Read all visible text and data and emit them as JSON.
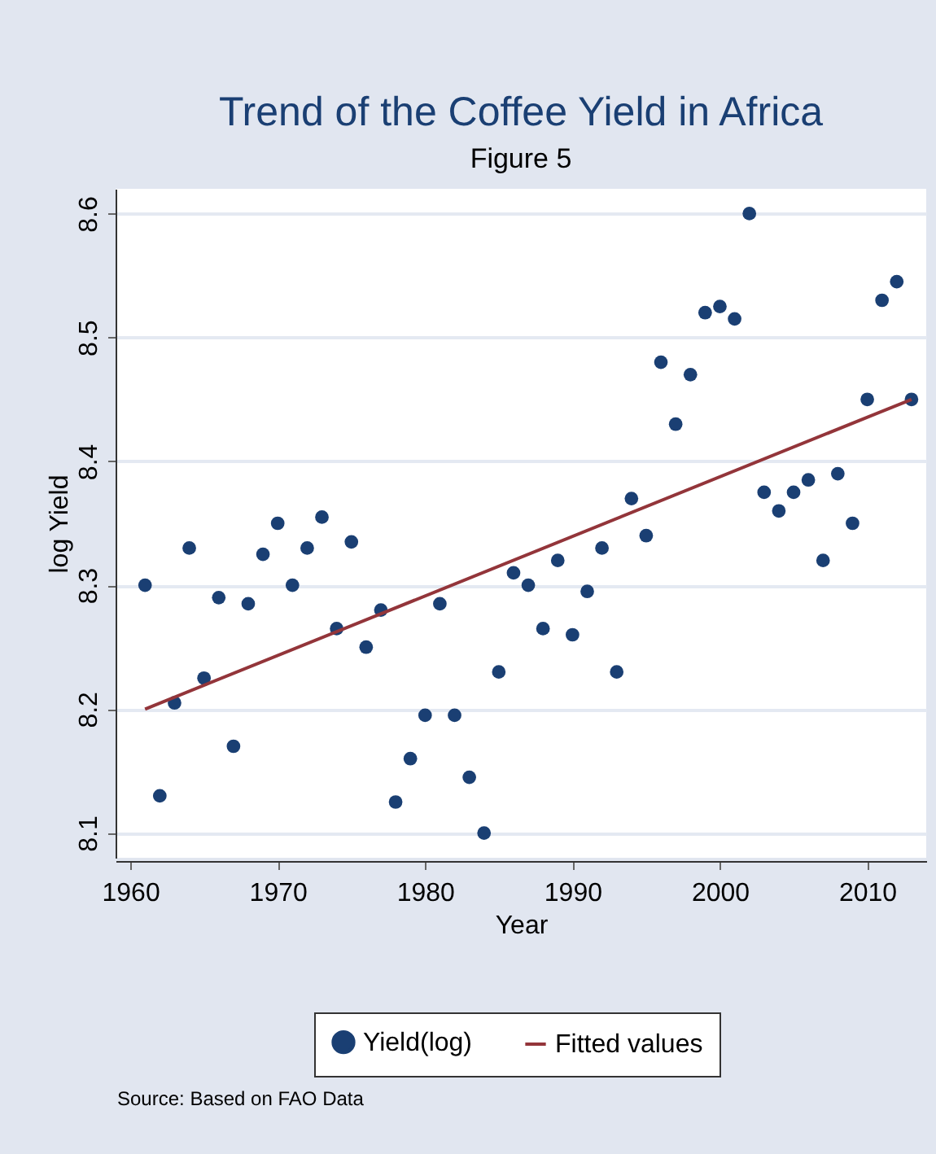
{
  "chart_data": {
    "type": "scatter",
    "title": "Trend of the Coffee Yield in Africa",
    "subtitle": "Figure 5",
    "xlabel": "Year",
    "ylabel": "log Yield",
    "annotations": [
      "Source: Based on FAO Data"
    ],
    "xlim": [
      1959,
      2014
    ],
    "xticks": [
      1960,
      1970,
      1980,
      1990,
      2000,
      2010
    ],
    "ylim": [
      8.08,
      8.62
    ],
    "yticks": [
      8.1,
      8.2,
      8.3,
      8.4,
      8.5,
      8.6
    ],
    "grid": "y",
    "legend": "bottom",
    "series": [
      {
        "name": "Yield(log)",
        "marker": "circle",
        "color": "#1a3f73",
        "x": [
          1961,
          1962,
          1963,
          1964,
          1965,
          1966,
          1967,
          1968,
          1969,
          1970,
          1971,
          1972,
          1973,
          1974,
          1975,
          1976,
          1977,
          1978,
          1979,
          1980,
          1981,
          1982,
          1983,
          1984,
          1985,
          1986,
          1987,
          1988,
          1989,
          1990,
          1991,
          1992,
          1993,
          1994,
          1995,
          1996,
          1997,
          1998,
          1999,
          2000,
          2001,
          2002,
          2003,
          2004,
          2005,
          2006,
          2007,
          2008,
          2009,
          2010,
          2011,
          2012,
          2013
        ],
        "values": [
          8.3,
          8.13,
          8.205,
          8.33,
          8.225,
          8.29,
          8.17,
          8.285,
          8.325,
          8.35,
          8.3,
          8.33,
          8.355,
          8.265,
          8.335,
          8.25,
          8.28,
          8.125,
          8.16,
          8.195,
          8.285,
          8.195,
          8.145,
          8.1,
          8.23,
          8.31,
          8.3,
          8.265,
          8.32,
          8.26,
          8.295,
          8.33,
          8.23,
          8.37,
          8.34,
          8.48,
          8.43,
          8.47,
          8.52,
          8.525,
          8.515,
          8.6,
          8.375,
          8.36,
          8.375,
          8.385,
          8.32,
          8.39,
          8.35,
          8.45,
          8.53,
          8.545,
          8.45
        ]
      },
      {
        "name": "Fitted values",
        "type": "line",
        "color": "#93353a",
        "x": [
          1961,
          2013
        ],
        "values": [
          8.2,
          8.45
        ]
      }
    ]
  }
}
